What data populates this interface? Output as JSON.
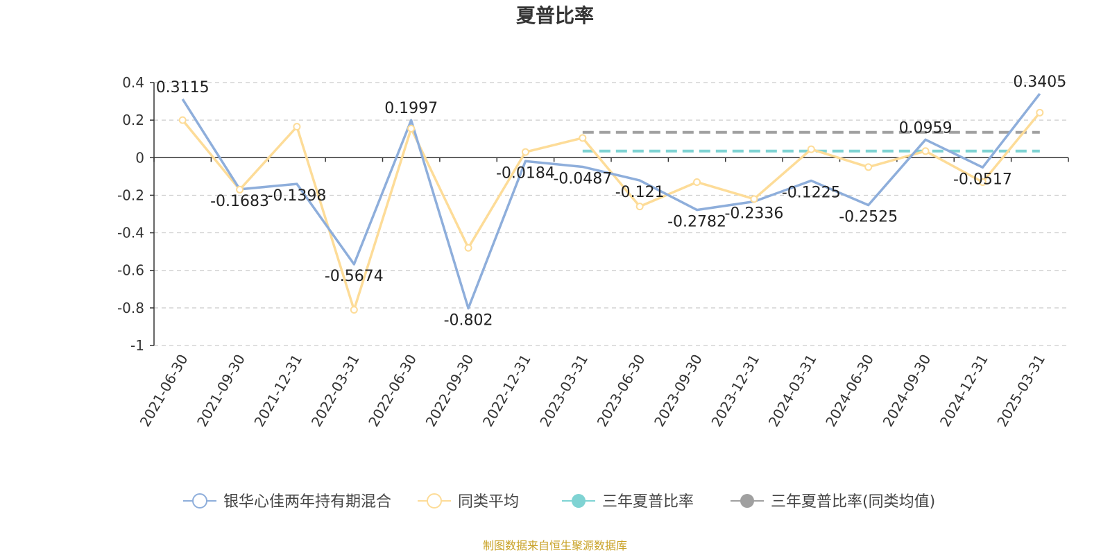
{
  "chart_data": {
    "type": "line",
    "title": "夏普比率",
    "categories": [
      "2021-06-30",
      "2021-09-30",
      "2021-12-31",
      "2022-03-31",
      "2022-06-30",
      "2022-09-30",
      "2022-12-31",
      "2023-03-31",
      "2023-06-30",
      "2023-09-30",
      "2023-12-31",
      "2024-03-31",
      "2024-06-30",
      "2024-09-30",
      "2024-12-31",
      "2025-03-31"
    ],
    "ylim": [
      -1,
      0.4
    ],
    "yticks": [
      0.4,
      0.2,
      0,
      -0.2,
      -0.4,
      -0.6,
      -0.8,
      -1
    ],
    "ytick_labels": [
      "0.4",
      "0.2",
      "0",
      "-0.2",
      "-0.4",
      "-0.6",
      "-0.8",
      "-1"
    ],
    "grid": true,
    "legend_position": "bottom",
    "series": [
      {
        "name": "银华心佳两年持有期混合",
        "color": "#8eaedb",
        "style": "line",
        "values": [
          0.3115,
          -0.1683,
          -0.1398,
          -0.5674,
          0.1997,
          -0.802,
          -0.0184,
          -0.0487,
          -0.121,
          -0.2782,
          -0.2336,
          -0.1225,
          -0.2525,
          0.0959,
          -0.0517,
          0.3405
        ],
        "data_labels": [
          "0.3115",
          "-0.1683",
          "-0.1398",
          "-0.5674",
          "0.1997",
          "-0.802",
          "-0.0184",
          "-0.0487",
          "-0.121",
          "-0.2782",
          "-0.2336",
          "-0.1225",
          "-0.2525",
          "0.0959",
          "-0.0517",
          "0.3405"
        ]
      },
      {
        "name": "同类平均",
        "color": "#fddc98",
        "style": "line-marker",
        "values": [
          0.2,
          -0.17,
          0.165,
          -0.81,
          0.155,
          -0.48,
          0.03,
          0.105,
          -0.26,
          -0.13,
          -0.22,
          0.045,
          -0.05,
          0.035,
          -0.13,
          0.24
        ]
      },
      {
        "name": "三年夏普比率",
        "color": "#7fd3d3",
        "style": "dashed",
        "x_range": [
          "2023-03-31",
          "2025-03-31"
        ],
        "value": 0.035
      },
      {
        "name": "三年夏普比率(同类均值)",
        "color": "#a0a0a0",
        "style": "dashed",
        "x_range": [
          "2023-03-31",
          "2025-03-31"
        ],
        "value": 0.135
      }
    ]
  },
  "source_text": "制图数据来自恒生聚源数据库"
}
